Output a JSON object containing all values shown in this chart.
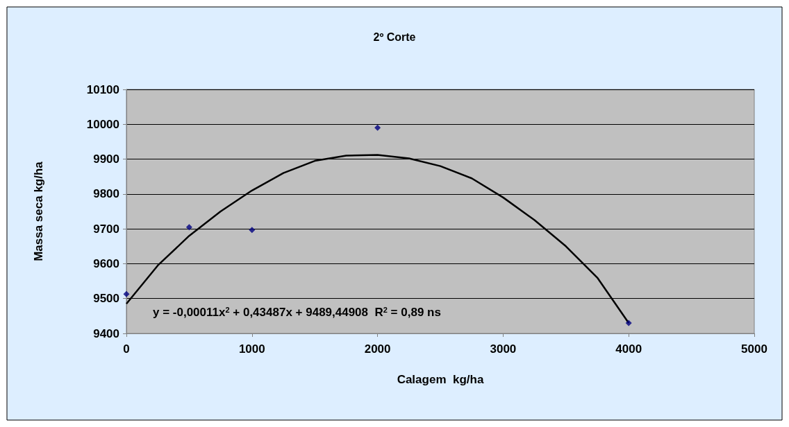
{
  "chart_data": {
    "type": "scatter",
    "title": "2º Corte",
    "xlabel": "Calagem  kg/ha",
    "ylabel": "Massa seca kg/ha",
    "xlim": [
      0,
      5000
    ],
    "xticks": [
      0,
      1000,
      2000,
      3000,
      4000,
      5000
    ],
    "ylim": [
      9400,
      10100
    ],
    "yticks": [
      9400,
      9500,
      9600,
      9700,
      9800,
      9900,
      10000,
      10100
    ],
    "grid": "y",
    "marker": "diamond",
    "series": [
      {
        "color": "#000080",
        "x": [
          0,
          500,
          1000,
          2000,
          4000
        ],
        "values": [
          9513,
          9705,
          9697,
          9990,
          9430
        ]
      },
      {
        "type": "line",
        "color": "#000000",
        "marker": "none",
        "line_style": "solid",
        "x": [
          0,
          250,
          500,
          750,
          1000,
          1250,
          1500,
          1750,
          2000,
          2250,
          2500,
          2750,
          3000,
          3250,
          3500,
          3750,
          4000
        ],
        "values": [
          9485,
          9595,
          9680,
          9750,
          9810,
          9860,
          9895,
          9910,
          9912,
          9902,
          9880,
          9845,
          9790,
          9725,
          9650,
          9560,
          9430
        ]
      }
    ],
    "annotations": [
      "y = -0,00011x$^{2}$ + 0,43487x + 9489,44908  R$^{2}$ = 0,89 ns"
    ]
  }
}
